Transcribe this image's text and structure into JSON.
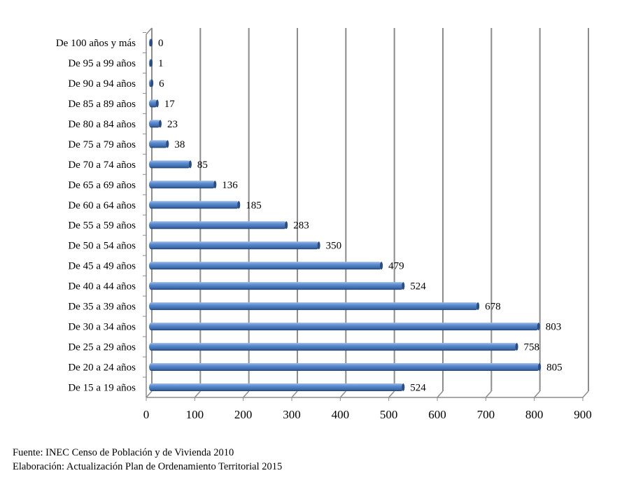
{
  "chart_data": {
    "type": "bar",
    "orientation": "horizontal",
    "style": "3d-cylinder",
    "categories": [
      "De 100 años y más",
      "De 95 a 99 años",
      "De 90 a 94 años",
      "De 85 a 89 años",
      "De 80 a 84 años",
      "De 75 a 79 años",
      "De 70 a 74 años",
      "De 65 a 69 años",
      "De 60 a 64 años",
      "De 55 a 59 años",
      "De 50 a 54 años",
      "De 45 a 49 años",
      "De 40 a 44 años",
      "De 35 a 39 años",
      "De 30 a 34 años",
      "De 25 a 29 años",
      "De 20 a 24 años",
      "De 15 a 19 años"
    ],
    "values": [
      0,
      1,
      6,
      17,
      23,
      38,
      85,
      136,
      185,
      283,
      350,
      479,
      524,
      678,
      803,
      758,
      805,
      524
    ],
    "xlim": [
      0,
      900
    ],
    "xticks": [
      0,
      100,
      200,
      300,
      400,
      500,
      600,
      700,
      800,
      900
    ],
    "grid": true,
    "legend": "none",
    "bar_color": "#4f81bd"
  },
  "footer": {
    "source": "Fuente: INEC Censo de Población y de Vivienda 2010",
    "elaboration": "Elaboración: Actualización Plan de Ordenamiento Territorial 2015"
  }
}
